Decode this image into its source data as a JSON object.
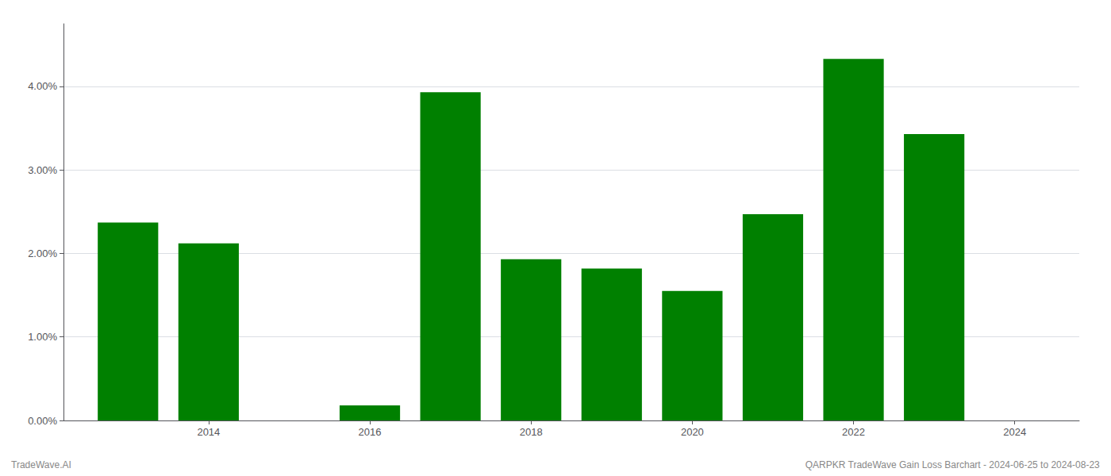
{
  "chart_data": {
    "type": "bar",
    "x": [
      2013,
      2014,
      2016,
      2017,
      2018,
      2019,
      2020,
      2021,
      2022,
      2023
    ],
    "values": [
      0.0237,
      0.0212,
      0.0018,
      0.0393,
      0.0193,
      0.0182,
      0.0155,
      0.0247,
      0.0433,
      0.0343
    ],
    "color": "#008000",
    "xlim": [
      2012.2,
      2024.8
    ],
    "xticks": [
      2014,
      2016,
      2018,
      2020,
      2022,
      2024
    ],
    "ylim": [
      0,
      0.0475
    ],
    "yticks": [
      {
        "value": 0.0,
        "label": "0.00%"
      },
      {
        "value": 0.01,
        "label": "1.00%"
      },
      {
        "value": 0.02,
        "label": "2.00%"
      },
      {
        "value": 0.03,
        "label": "3.00%"
      },
      {
        "value": 0.04,
        "label": "4.00%"
      }
    ],
    "grid": true,
    "annotations": [
      "TradeWave.AI",
      "QARPKR TradeWave Gain Loss Barchart - 2024-06-25 to 2024-08-23"
    ]
  }
}
